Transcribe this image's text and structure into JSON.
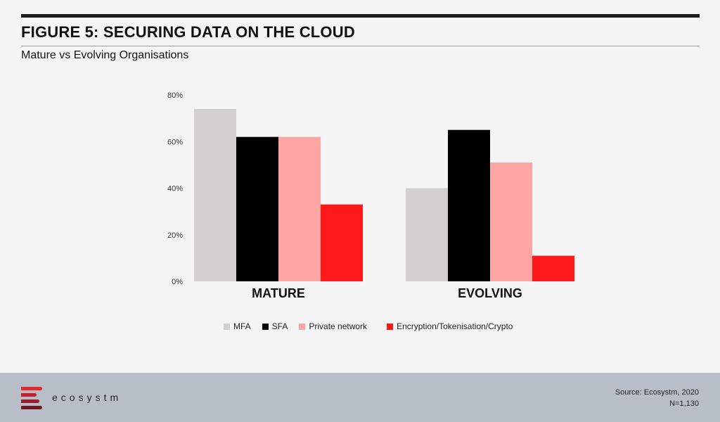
{
  "header": {
    "title": "FIGURE 5: SECURING DATA ON THE CLOUD",
    "subtitle": "Mature vs Evolving Organisations"
  },
  "colors": {
    "MFA": "#d1cfd0",
    "SFA": "#000000",
    "Private network": "#fda5a5",
    "Encryption/Tokenisation/Crypto": "#fe1a1a"
  },
  "chart_data": {
    "type": "bar",
    "categories": [
      "MATURE",
      "EVOLVING"
    ],
    "series": [
      {
        "name": "MFA",
        "values": [
          74,
          40
        ]
      },
      {
        "name": "SFA",
        "values": [
          62,
          65
        ]
      },
      {
        "name": "Private network",
        "values": [
          62,
          51
        ]
      },
      {
        "name": "Encryption/Tokenisation/Crypto",
        "values": [
          33,
          11
        ]
      }
    ],
    "ylim": [
      0,
      80
    ],
    "yticks": [
      "0%",
      "20%",
      "40%",
      "60%",
      "80%"
    ],
    "ytick_values": [
      0,
      20,
      40,
      60,
      80
    ],
    "grid": false,
    "legend_position": "bottom"
  },
  "footer": {
    "logo_text": "ecosystm",
    "source": "Source: Ecosystm, 2020",
    "sample": "N=1,130"
  }
}
